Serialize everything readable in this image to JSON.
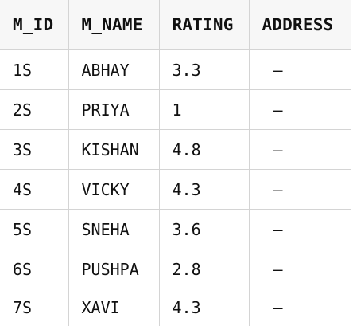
{
  "table": {
    "columns": [
      "M_ID",
      "M_NAME",
      "RATING",
      "ADDRESS"
    ],
    "rows": [
      [
        "1S",
        "ABHAY",
        "3.3",
        "–"
      ],
      [
        "2S",
        "PRIYA",
        "1",
        "–"
      ],
      [
        "3S",
        "KISHAN",
        "4.8",
        "–"
      ],
      [
        "4S",
        "VICKY",
        "4.3",
        "–"
      ],
      [
        "5S",
        "SNEHA",
        "3.6",
        "–"
      ],
      [
        "6S",
        "PUSHPA",
        "2.8",
        "–"
      ],
      [
        "7S",
        "XAVI",
        "4.3",
        "–"
      ]
    ]
  }
}
